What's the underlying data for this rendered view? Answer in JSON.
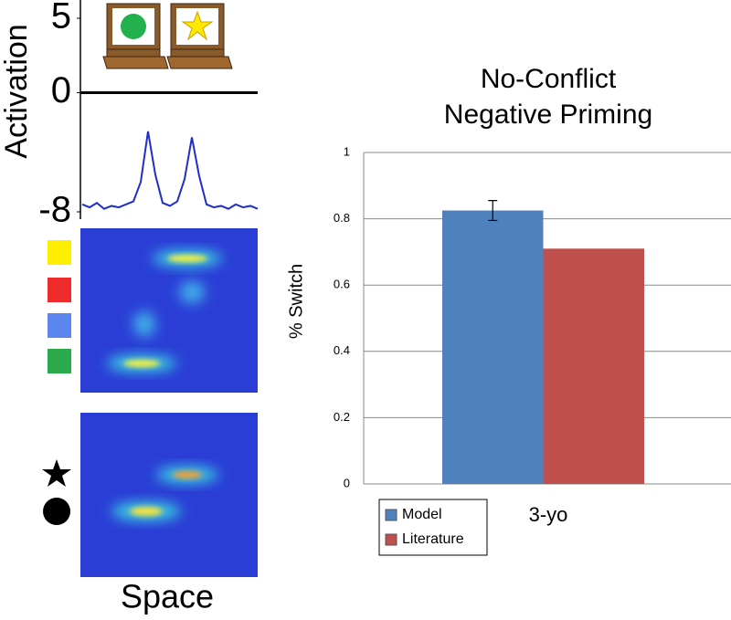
{
  "chart_data": [
    {
      "type": "line",
      "ylabel": "Activation",
      "xlabel": "Space",
      "ylim": [
        -8,
        5
      ],
      "yticks": [
        -8,
        0,
        5
      ],
      "zero_line": true,
      "color": "#1f2fc8",
      "values": [
        -7.5,
        -7.7,
        -7.4,
        -7.8,
        -7.6,
        -7.7,
        -7.5,
        -7.3,
        -6.0,
        -2.6,
        -5.5,
        -7.4,
        -7.6,
        -7.3,
        -5.8,
        -3.0,
        -5.6,
        -7.5,
        -7.7,
        -7.6,
        -7.8,
        -7.5,
        -7.7,
        -7.6,
        -7.8
      ]
    },
    {
      "type": "bar",
      "title": [
        "No-Conflict",
        "Negative Priming"
      ],
      "ylabel": "% Switch",
      "categories": [
        "3-yo"
      ],
      "ylim": [
        0,
        1
      ],
      "yticks": [
        0,
        0.2,
        0.4,
        0.6,
        0.8,
        1
      ],
      "grid": true,
      "legend": "bottom-left",
      "series": [
        {
          "name": "Model",
          "color": "#4f81bd",
          "values": [
            0.825
          ],
          "errors": [
            0.03
          ]
        },
        {
          "name": "Literature",
          "color": "#c0504d",
          "values": [
            0.71
          ]
        }
      ]
    }
  ]
}
